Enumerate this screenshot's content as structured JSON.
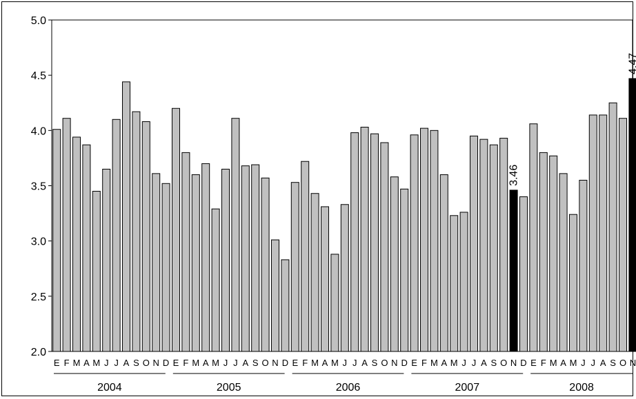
{
  "chart_data": {
    "type": "bar",
    "ylim": [
      2.0,
      5.0
    ],
    "yticks": [
      "2.0",
      "2.5",
      "3.0",
      "3.5",
      "4.0",
      "4.5",
      "5.0"
    ],
    "grid": false,
    "colors": {
      "bar": "#c0c0c0",
      "highlight": "#000000",
      "outline": "#000000"
    },
    "years": [
      {
        "label": "2004",
        "months": [
          "E",
          "F",
          "M",
          "A",
          "M",
          "J",
          "J",
          "A",
          "S",
          "O",
          "N",
          "D"
        ],
        "values": [
          4.01,
          4.11,
          3.94,
          3.87,
          3.45,
          3.65,
          4.1,
          4.44,
          4.17,
          4.08,
          3.61,
          3.52
        ]
      },
      {
        "label": "2005",
        "months": [
          "E",
          "F",
          "M",
          "A",
          "M",
          "J",
          "J",
          "A",
          "S",
          "O",
          "N",
          "D"
        ],
        "values": [
          4.2,
          3.8,
          3.6,
          3.7,
          3.29,
          3.65,
          4.11,
          3.68,
          3.69,
          3.57,
          3.01,
          2.83
        ]
      },
      {
        "label": "2006",
        "months": [
          "E",
          "F",
          "M",
          "A",
          "M",
          "J",
          "J",
          "A",
          "S",
          "O",
          "N",
          "D"
        ],
        "values": [
          3.53,
          3.72,
          3.43,
          3.31,
          2.88,
          3.33,
          3.98,
          4.03,
          3.97,
          3.89,
          3.58,
          3.47
        ]
      },
      {
        "label": "2007",
        "months": [
          "E",
          "F",
          "M",
          "A",
          "M",
          "J",
          "J",
          "A",
          "S",
          "O",
          "N",
          "D"
        ],
        "values": [
          3.96,
          4.02,
          4.0,
          3.6,
          3.23,
          3.26,
          3.95,
          3.92,
          3.87,
          3.93,
          3.46,
          3.4
        ],
        "highlight_index": 10,
        "label_text": "3.46"
      },
      {
        "label": "2008",
        "months": [
          "E",
          "F",
          "M",
          "A",
          "M",
          "J",
          "J",
          "A",
          "S",
          "O",
          "N"
        ],
        "values": [
          4.06,
          3.8,
          3.77,
          3.61,
          3.24,
          3.55,
          4.14,
          4.14,
          4.25,
          4.11,
          4.47
        ],
        "highlight_index": 10,
        "label_text": "4.47"
      }
    ]
  }
}
